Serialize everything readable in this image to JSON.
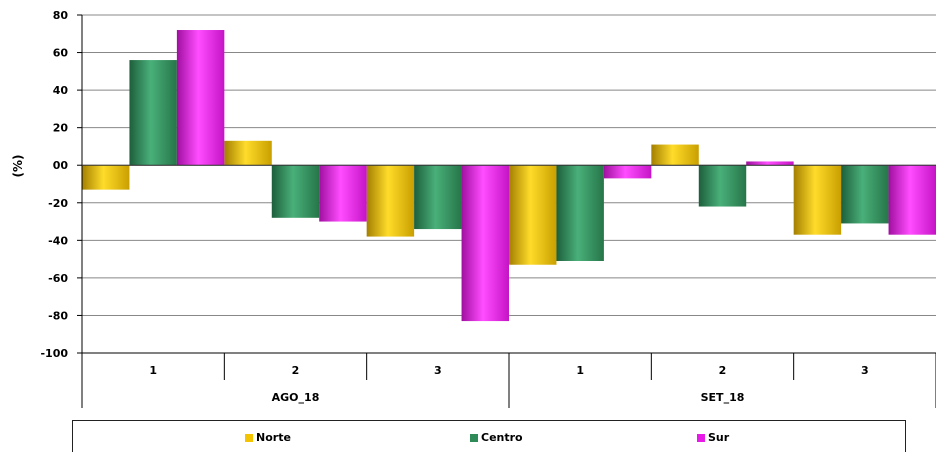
{
  "chart_data": {
    "type": "bar",
    "ylabel": "(%)",
    "ylim": [
      -100,
      80
    ],
    "yticks": [
      "80",
      "60",
      "40",
      "20",
      "00",
      "-20",
      "-40",
      "-60",
      "-80",
      "-100"
    ],
    "grid": true,
    "legend_position": "bottom",
    "groups": [
      {
        "label": "AGO_18",
        "categories": [
          "1",
          "2",
          "3"
        ]
      },
      {
        "label": "SET_18",
        "categories": [
          "1",
          "2",
          "3"
        ]
      }
    ],
    "series": [
      {
        "name": "Norte",
        "color": "#f5c400",
        "values": [
          -13,
          13,
          -38,
          -53,
          11,
          -37
        ]
      },
      {
        "name": "Centro",
        "color": "#2e8b57",
        "values": [
          56,
          -28,
          -34,
          -51,
          -22,
          -31
        ]
      },
      {
        "name": "Sur",
        "color": "#e81ae8",
        "values": [
          72,
          -30,
          -83,
          -7,
          2,
          -37
        ]
      }
    ]
  }
}
